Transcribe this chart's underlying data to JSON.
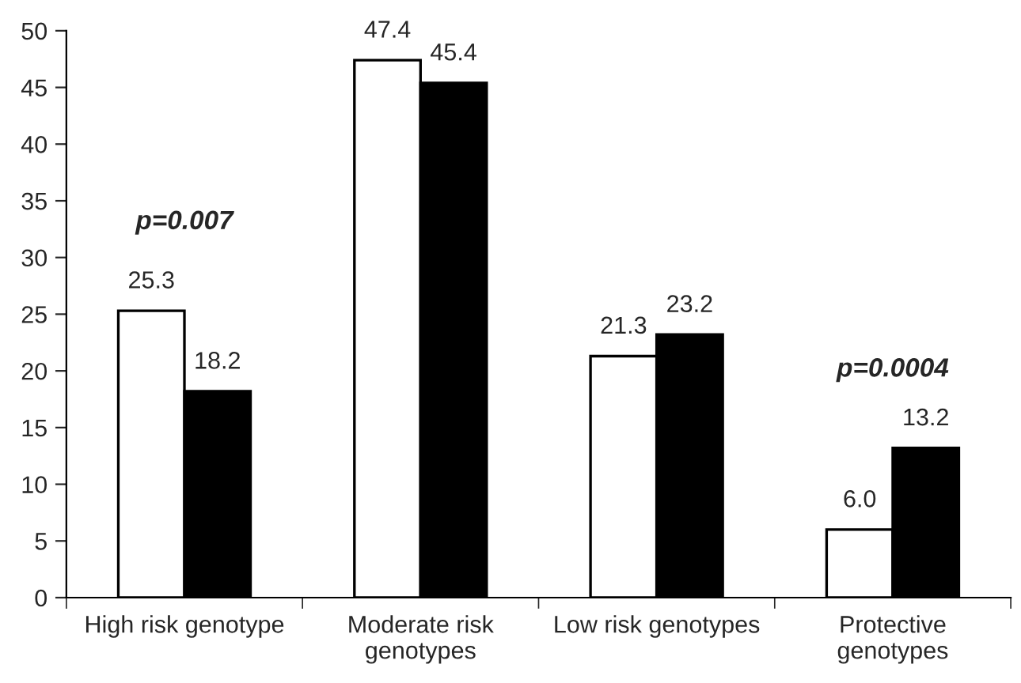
{
  "chart_data": {
    "type": "bar",
    "categories": [
      "High risk genotype",
      "Moderate risk\ngenotypes",
      "Low risk genotypes",
      "Protective\ngenotypes"
    ],
    "series": [
      {
        "color": "#ffffff",
        "values": [
          25.3,
          47.4,
          21.3,
          6.0
        ],
        "value_labels": [
          "25.3",
          "47.4",
          "21.3",
          "6.0"
        ]
      },
      {
        "color": "#000000",
        "values": [
          18.2,
          45.4,
          23.2,
          13.2
        ],
        "value_labels": [
          "18.2",
          "45.4",
          "23.2",
          "13.2"
        ]
      }
    ],
    "ylim": [
      0,
      50
    ],
    "yticks": [
      0,
      5,
      10,
      15,
      20,
      25,
      30,
      35,
      40,
      45,
      50
    ],
    "grid": false,
    "legend": false,
    "annotations": [
      "p=0.007",
      "p=0.0004"
    ]
  }
}
